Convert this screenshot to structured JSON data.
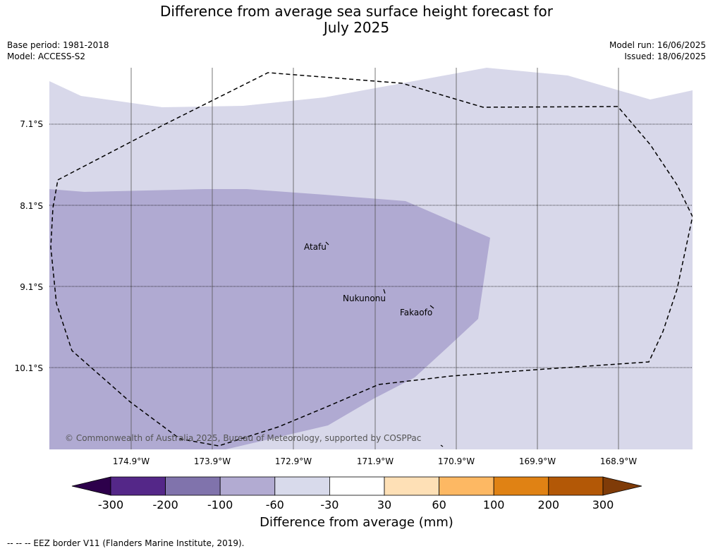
{
  "title_line1": "Difference from average sea surface height forecast for",
  "title_line2": "July 2025",
  "meta_left": [
    "Base period: 1981-2018",
    "Model: ACCESS-S2"
  ],
  "meta_right": [
    "Model run: 16/06/2025",
    "Issued: 18/06/2025"
  ],
  "map": {
    "lat_labels": [
      "7.1°S",
      "8.1°S",
      "9.1°S",
      "10.1°S"
    ],
    "lon_labels": [
      "174.9°W",
      "173.9°W",
      "172.9°W",
      "171.9°W",
      "170.9°W",
      "169.9°W",
      "168.9°W"
    ],
    "places": [
      "Atafu",
      "Nukunonu",
      "Fakaofo"
    ],
    "copyright": "© Commonwealth of Australia 2025, Bureau of Meteorology, supported by COSPPac",
    "colors": {
      "band_-60_-30": "#d8d8ea",
      "band_-100_-60": "#b0aad2"
    }
  },
  "colorbar": {
    "ticks": [
      "-300",
      "-200",
      "-100",
      "-60",
      "-30",
      "30",
      "60",
      "100",
      "200",
      "300"
    ],
    "colors": [
      "#2d004b",
      "#542788",
      "#8073ac",
      "#b2abd2",
      "#d8daeb",
      "#ffffff",
      "#fee0b6",
      "#fdb863",
      "#e08214",
      "#b35806",
      "#7f3b08"
    ],
    "label": "Difference from average (mm)"
  },
  "footnote": "-- -- -- EEZ border V11 (Flanders Marine Institute, 2019)."
}
